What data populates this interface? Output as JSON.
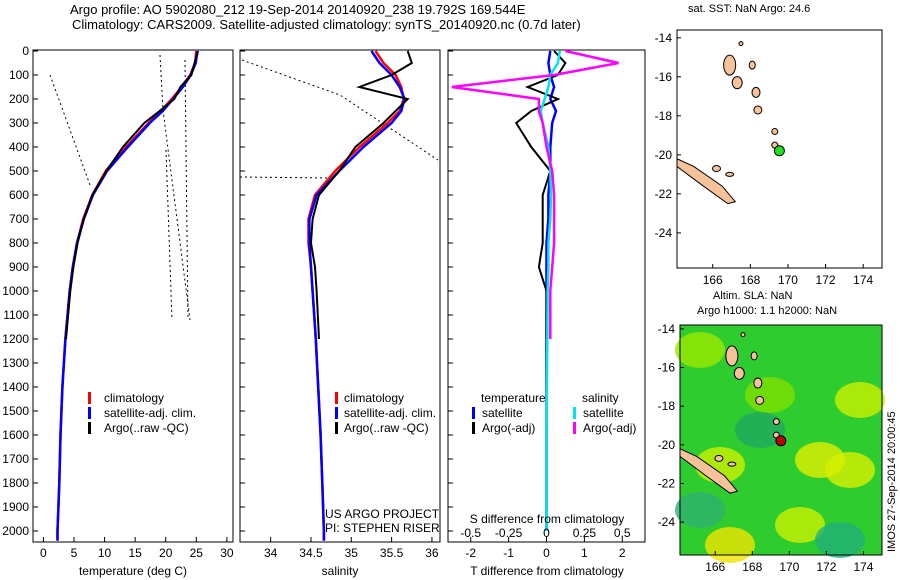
{
  "header": {
    "line1": "Argo profile: AO 5902080_212 19-Sep-2014 20140920_238 19.792S 169.544E",
    "line2": "Climatology: CARS2009. Satellite-adjusted climatology: synTS_20140920.nc (0.7d later)"
  },
  "colors": {
    "clim": "#ff0000",
    "sat": "#0000ff",
    "argo": "#000000",
    "sat_s": "#00e5ee",
    "argo_s": "#ff00ff",
    "land": "#f7c29a"
  },
  "chart_data": [
    {
      "type": "line",
      "name": "temperature",
      "xlabel": "temperature (deg C)",
      "xlim": [
        -2,
        31
      ],
      "ylim": [
        2050,
        0
      ],
      "xticks": [
        0,
        5,
        10,
        15,
        20,
        25,
        30
      ],
      "yticks": [
        0,
        100,
        200,
        300,
        400,
        500,
        600,
        700,
        800,
        900,
        1000,
        1100,
        1200,
        1300,
        1400,
        1500,
        1600,
        1700,
        1800,
        1900,
        2000
      ],
      "depth": [
        0,
        50,
        100,
        150,
        200,
        250,
        300,
        400,
        500,
        600,
        700,
        800,
        900,
        1000,
        1200,
        1400,
        1600,
        1800,
        2000,
        2040
      ],
      "series": [
        {
          "name": "climatology",
          "color": "#ff0000",
          "values": [
            25,
            24.8,
            24,
            22.6,
            21,
            19.2,
            17.2,
            13.5,
            10.2,
            8,
            6.5,
            5.5,
            4.8,
            4.3,
            3.6,
            3.1,
            2.8,
            2.6,
            2.3,
            2.3
          ]
        },
        {
          "name": "satellite-adj. clim.",
          "color": "#0000ff",
          "values": [
            25.2,
            24.9,
            24.1,
            22.8,
            21.2,
            19.5,
            17.4,
            13.8,
            10.4,
            8.1,
            6.6,
            5.5,
            4.8,
            4.3,
            3.6,
            3.1,
            2.8,
            2.6,
            2.3,
            2.3
          ]
        },
        {
          "name": "Argo(..raw -QC)",
          "color": "#000000",
          "values": [
            25.3,
            24.7,
            24.2,
            22.4,
            21.4,
            19,
            16.5,
            13,
            10.3,
            8,
            6.6,
            5.6,
            4.9,
            4.4,
            3.7,
            null,
            null,
            null,
            null,
            null
          ]
        }
      ],
      "legend": [
        "climatology",
        "satellite-adj. clim.",
        "Argo(..raw -QC)"
      ],
      "legend_position": "lower-center"
    },
    {
      "type": "line",
      "name": "salinity",
      "xlabel": "salinity",
      "xlim": [
        33.6,
        36.1
      ],
      "xticks": [
        34,
        34.5,
        35,
        35.5,
        36
      ],
      "depth": [
        0,
        50,
        100,
        150,
        200,
        250,
        300,
        400,
        500,
        600,
        700,
        800,
        900,
        1000,
        1200,
        1400,
        1600,
        1800,
        2000,
        2040
      ],
      "series": [
        {
          "name": "climatology",
          "color": "#ff0000",
          "values": [
            35.3,
            35.4,
            35.55,
            35.62,
            35.65,
            35.6,
            35.45,
            35.1,
            34.8,
            34.55,
            34.47,
            34.47,
            34.5,
            34.52,
            34.56,
            34.59,
            34.62,
            34.64,
            34.66,
            34.66
          ]
        },
        {
          "name": "satellite-adj. clim.",
          "color": "#0000ff",
          "values": [
            35.25,
            35.35,
            35.5,
            35.6,
            35.66,
            35.62,
            35.5,
            35.15,
            34.85,
            34.57,
            34.48,
            34.48,
            34.5,
            34.52,
            34.56,
            34.59,
            34.62,
            34.64,
            34.66,
            34.66
          ]
        },
        {
          "name": "Argo(..raw -QC)",
          "color": "#000000",
          "values": [
            35.7,
            35.75,
            35.5,
            35.1,
            35.7,
            35.55,
            35.4,
            35.05,
            34.85,
            34.6,
            34.52,
            34.5,
            34.55,
            34.57,
            34.6,
            null,
            null,
            null,
            null,
            null
          ]
        }
      ],
      "legend": [
        "climatology",
        "satellite-adj. clim.",
        "Argo(..raw -QC)"
      ],
      "annotation": [
        "US ARGO PROJECT",
        "PI: STEPHEN RISER"
      ]
    },
    {
      "type": "line",
      "name": "differences",
      "xlabel": "T difference from climatology",
      "x2label": "S difference from climatology",
      "xlim": [
        -2.6,
        2.6
      ],
      "xticks": [
        -2,
        -1,
        0,
        1,
        2
      ],
      "x2ticks": [
        "-0.5",
        "-0.25",
        "0",
        "0.25",
        "0.5"
      ],
      "depth": [
        0,
        50,
        100,
        150,
        200,
        250,
        300,
        400,
        500,
        600,
        700,
        800,
        900,
        1000,
        1200,
        1400,
        1600,
        1800,
        2000
      ],
      "series": [
        {
          "name": "temperature satellite",
          "color": "#0000ff",
          "values": [
            0.1,
            0.05,
            0.1,
            0.2,
            0.1,
            0.25,
            0.15,
            0.1,
            0.1,
            0.05,
            0.05,
            0,
            0,
            0,
            0,
            0,
            0,
            0,
            0
          ]
        },
        {
          "name": "temperature Argo(-adj)",
          "color": "#000000",
          "values": [
            0.2,
            0.5,
            0.3,
            -0.5,
            0.3,
            -0.4,
            -0.8,
            -0.4,
            0.1,
            -0.1,
            -0.1,
            -0.1,
            -0.2,
            0,
            0,
            null,
            null,
            null,
            null
          ]
        },
        {
          "name": "salinity satellite",
          "color": "#00e5ee",
          "values": [
            0.35,
            0.3,
            0.1,
            0.05,
            -0.05,
            -0.15,
            -0.1,
            0.05,
            0.1,
            0.12,
            0.1,
            0.05,
            0.05,
            0.03,
            0.02,
            0.01,
            0,
            0,
            0
          ]
        },
        {
          "name": "salinity Argo(-adj)",
          "color": "#ff00ff",
          "values": [
            0.5,
            1.9,
            0.2,
            -2.5,
            -0.2,
            -0.2,
            -0.1,
            0,
            0.15,
            0.2,
            0.2,
            0.2,
            0.15,
            0.1,
            0.1,
            null,
            null,
            null,
            null
          ]
        }
      ],
      "legend_titles": [
        "temperature",
        "salinity"
      ],
      "legend": [
        "satellite",
        "Argo(-adj)",
        "satellite",
        "Argo(-adj)"
      ]
    },
    {
      "type": "map",
      "title": "sat. SST: NaN Argo: 24.6",
      "xticks": [
        166,
        168,
        170,
        172,
        174
      ],
      "yticks": [
        -14,
        -16,
        -18,
        -20,
        -22,
        -24
      ],
      "marker": [
        169.544,
        -19.792
      ],
      "marker_color": "#22dd22"
    },
    {
      "type": "map",
      "title": "Altim. SLA: NaN",
      "subtitle": "Argo h1000: 1.1 h2000: NaN",
      "xticks": [
        166,
        168,
        170,
        172,
        174
      ],
      "yticks": [
        -14,
        -16,
        -18,
        -20,
        -22,
        -24
      ],
      "marker": [
        169.544,
        -19.792
      ],
      "marker_color": "#bb0000"
    }
  ],
  "footer": {
    "stamp": "IMOS 27-Sep-2014 20:00:45"
  }
}
